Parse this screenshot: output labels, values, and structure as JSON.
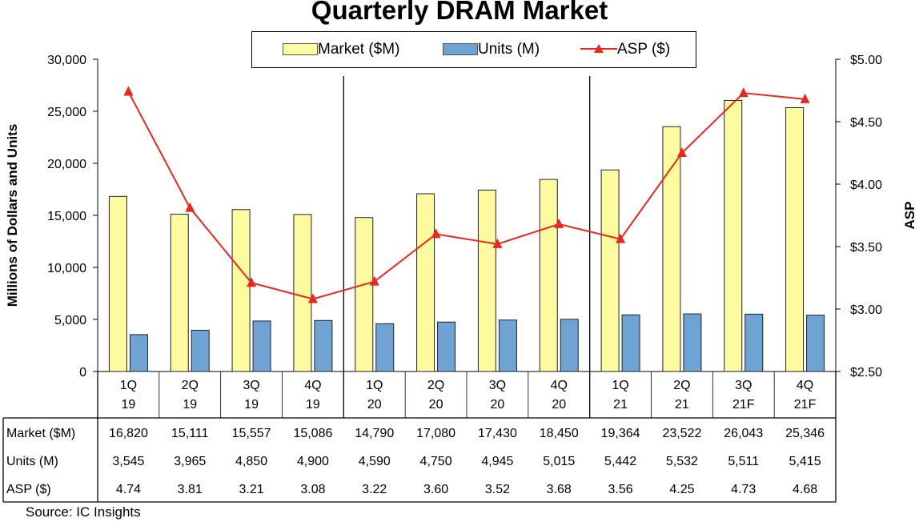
{
  "chart_data": {
    "type": "bar",
    "title": "Quarterly DRAM Market",
    "ylabel": "Millions of Dollars and Units",
    "y2label": "ASP",
    "ylim": [
      0,
      30000
    ],
    "yticks": [
      "0",
      "5,000",
      "10,000",
      "15,000",
      "20,000",
      "25,000",
      "30,000"
    ],
    "y2lim": [
      2.5,
      5.0
    ],
    "y2ticks": [
      "$2.50",
      "$3.00",
      "$3.50",
      "$4.00",
      "$4.50",
      "$5.00"
    ],
    "categories": [
      [
        "1Q",
        "19"
      ],
      [
        "2Q",
        "19"
      ],
      [
        "3Q",
        "19"
      ],
      [
        "4Q",
        "19"
      ],
      [
        "1Q",
        "20"
      ],
      [
        "2Q",
        "20"
      ],
      [
        "3Q",
        "20"
      ],
      [
        "4Q",
        "20"
      ],
      [
        "1Q",
        "21"
      ],
      [
        "2Q",
        "21"
      ],
      [
        "3Q",
        "21F"
      ],
      [
        "4Q",
        "21F"
      ]
    ],
    "legend_position": "top-center",
    "series": [
      {
        "name": "Market ($M)",
        "type": "bar",
        "axis": "left",
        "color": "#fdfaa0",
        "values": [
          16820,
          15111,
          15557,
          15086,
          14790,
          17080,
          17430,
          18450,
          19364,
          23522,
          26043,
          25346
        ]
      },
      {
        "name": "Units (M)",
        "type": "bar",
        "axis": "left",
        "color": "#6fa3d4",
        "values": [
          3545,
          3965,
          4850,
          4900,
          4590,
          4750,
          4945,
          5015,
          5442,
          5532,
          5511,
          5415
        ]
      },
      {
        "name": "ASP ($)",
        "type": "line",
        "axis": "right",
        "color": "#e8281e",
        "marker": "triangle",
        "values": [
          4.74,
          3.81,
          3.21,
          3.08,
          3.22,
          3.6,
          3.52,
          3.68,
          3.56,
          4.25,
          4.73,
          4.68
        ]
      }
    ],
    "table": {
      "rows": [
        {
          "label": "Market ($M)",
          "cells": [
            "16,820",
            "15,111",
            "15,557",
            "15,086",
            "14,790",
            "17,080",
            "17,430",
            "18,450",
            "19,364",
            "23,522",
            "26,043",
            "25,346"
          ]
        },
        {
          "label": "Units (M)",
          "cells": [
            "3,545",
            "3,965",
            "4,850",
            "4,900",
            "4,590",
            "4,750",
            "4,945",
            "5,015",
            "5,442",
            "5,532",
            "5,511",
            "5,415"
          ]
        },
        {
          "label": "ASP ($)",
          "cells": [
            "4.74",
            "3.81",
            "3.21",
            "3.08",
            "3.22",
            "3.60",
            "3.52",
            "3.68",
            "3.56",
            "4.25",
            "4.73",
            "4.68"
          ]
        }
      ]
    },
    "year_separators_after": [
      4,
      8
    ],
    "source": "Source:  IC Insights"
  }
}
